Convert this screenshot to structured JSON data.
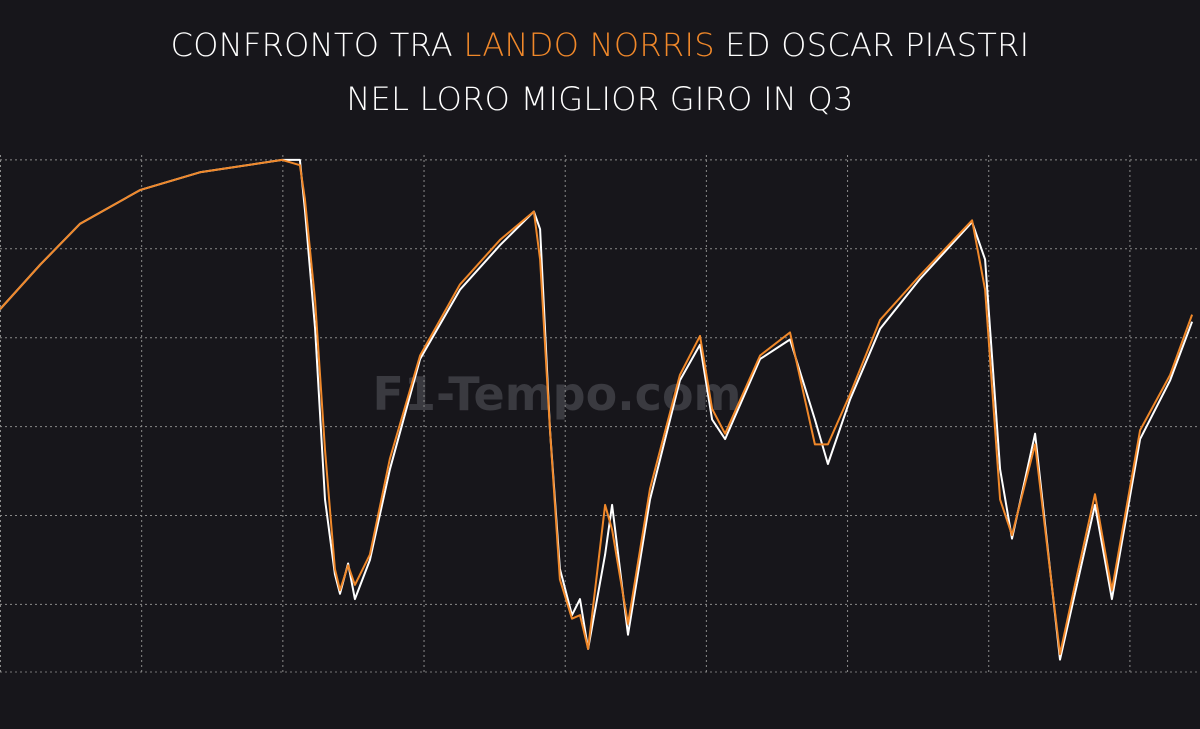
{
  "chart_data": {
    "type": "line",
    "title": {
      "line1": [
        "CONFRONTO TRA",
        "LANDO NORRIS",
        "ED OSCAR PIASTRI"
      ],
      "line2": "NEL LORO MIGLIOR GIRO IN Q3",
      "highlight_color": "#f0882a"
    },
    "watermark": "F1-Tempo.com",
    "x": [
      0,
      142,
      283,
      496,
      708,
      999,
      1062,
      1080,
      1116,
      1151,
      1186,
      1204,
      1233,
      1257,
      1310,
      1381,
      1488,
      1629,
      1771,
      1891,
      1913,
      1948,
      1983,
      2026,
      2054,
      2083,
      2143,
      2168,
      2224,
      2302,
      2408,
      2479,
      2522,
      2568,
      2692,
      2798,
      2886,
      2932,
      3010,
      3117,
      3258,
      3443,
      3489,
      3542,
      3584,
      3666,
      3754,
      3807,
      3878,
      3938,
      4038,
      4144,
      4222
    ],
    "series": [
      {
        "color": "#ffffff",
        "values": [
          266,
          291,
          314,
          333,
          343,
          350,
          350,
          322,
          255,
          159,
          117,
          106,
          123,
          103,
          125,
          176,
          238,
          277,
          302,
          321,
          311,
          198,
          120,
          94,
          103,
          75,
          128,
          156,
          83,
          159,
          226,
          246,
          204,
          193,
          238,
          249,
          204,
          179,
          215,
          255,
          283,
          315,
          294,
          176,
          137,
          196,
          69,
          106,
          156,
          103,
          193,
          226,
          259
        ]
      },
      {
        "color": "#f0882a",
        "values": [
          266,
          291,
          314,
          333,
          343,
          350,
          347,
          328,
          271,
          187,
          120,
          108,
          122,
          111,
          128,
          182,
          240,
          280,
          305,
          321,
          294,
          198,
          114,
          92,
          94,
          75,
          156,
          142,
          89,
          165,
          229,
          251,
          210,
          196,
          240,
          253,
          190,
          190,
          218,
          260,
          285,
          316,
          277,
          159,
          139,
          190,
          72,
          111,
          162,
          108,
          198,
          229,
          263
        ]
      }
    ],
    "xlim": [
      0,
      4250
    ],
    "xticks": [
      0,
      500,
      1000,
      1500,
      2000,
      2500,
      3000,
      3500,
      4000
    ],
    "ylim": [
      62,
      355
    ],
    "yticks": [
      100,
      150,
      200,
      250,
      300,
      350
    ],
    "grid": true
  }
}
